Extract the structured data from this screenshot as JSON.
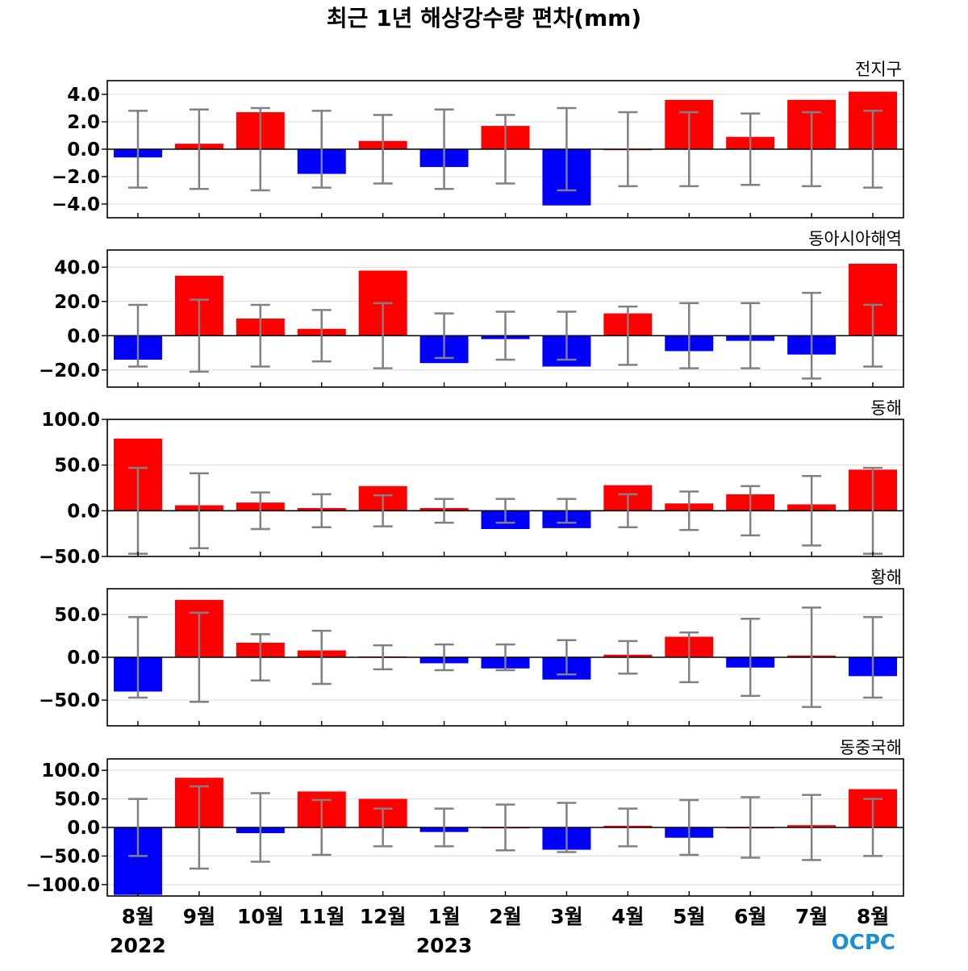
{
  "title": "최근 1년 해상강수량 편차(mm)",
  "logo": "OCPC",
  "chart_data": {
    "type": "bar",
    "categories": [
      "8월",
      "9월",
      "10월",
      "11월",
      "12월",
      "1월",
      "2월",
      "3월",
      "4월",
      "5월",
      "6월",
      "7월",
      "8월"
    ],
    "year_labels": [
      {
        "text": "2022",
        "index": 0
      },
      {
        "text": "2023",
        "index": 5
      }
    ],
    "positive_color": "#ff0000",
    "negative_color": "#0000ff",
    "error_bar_color": "#808080",
    "grid": true,
    "panels": [
      {
        "name": "전지구",
        "ylim": [
          -5,
          5
        ],
        "yticks": [
          -4.0,
          -2.0,
          0.0,
          2.0,
          4.0
        ],
        "tick_labels": [
          "−4.0",
          "−2.0",
          "0.0",
          "2.0",
          "4.0"
        ],
        "values": [
          -0.6,
          0.4,
          2.7,
          -1.8,
          0.6,
          -1.3,
          1.7,
          -4.1,
          0.0,
          3.6,
          0.9,
          3.6,
          4.2
        ],
        "error": [
          2.8,
          2.9,
          3.0,
          2.8,
          2.5,
          2.9,
          2.5,
          3.0,
          2.7,
          2.7,
          2.6,
          2.7,
          2.8
        ]
      },
      {
        "name": "동아시아해역",
        "ylim": [
          -30,
          50
        ],
        "yticks": [
          -20.0,
          0.0,
          20.0,
          40.0
        ],
        "tick_labels": [
          "−20.0",
          "0.0",
          "20.0",
          "40.0"
        ],
        "values": [
          -14,
          35,
          10,
          4,
          38,
          -16,
          -2,
          -18,
          13,
          -9,
          -3,
          -11,
          42
        ],
        "error": [
          18,
          21,
          18,
          15,
          19,
          13,
          14,
          14,
          17,
          19,
          19,
          25,
          18
        ]
      },
      {
        "name": "동해",
        "ylim": [
          -50,
          100
        ],
        "yticks": [
          -50.0,
          0.0,
          50.0,
          100.0
        ],
        "tick_labels": [
          "−50.0",
          "0.0",
          "50.0",
          "100.0"
        ],
        "values": [
          79,
          6,
          9,
          3,
          27,
          3,
          -20,
          -19,
          28,
          8,
          18,
          7,
          45
        ],
        "error": [
          47,
          41,
          20,
          18,
          17,
          13,
          13,
          13,
          18,
          21,
          27,
          38,
          47
        ]
      },
      {
        "name": "황해",
        "ylim": [
          -80,
          80
        ],
        "yticks": [
          -50.0,
          0.0,
          50.0
        ],
        "tick_labels": [
          "−50.0",
          "0.0",
          "50.0"
        ],
        "values": [
          -40,
          67,
          17,
          8,
          1,
          -7,
          -13,
          -26,
          3,
          24,
          -12,
          2,
          -22
        ],
        "error": [
          47,
          52,
          27,
          31,
          14,
          15,
          15,
          20,
          19,
          29,
          45,
          58,
          47
        ]
      },
      {
        "name": "동중국해",
        "ylim": [
          -120,
          120
        ],
        "yticks": [
          -100.0,
          -50.0,
          0.0,
          50.0,
          100.0
        ],
        "tick_labels": [
          "−100.0",
          "−50.0",
          "0.0",
          "50.0",
          "100.0"
        ],
        "values": [
          -118,
          87,
          -10,
          63,
          50,
          -8,
          0,
          -39,
          3,
          -18,
          0,
          4,
          67
        ],
        "error": [
          50,
          72,
          60,
          48,
          33,
          33,
          40,
          43,
          33,
          48,
          53,
          57,
          50
        ]
      }
    ]
  }
}
